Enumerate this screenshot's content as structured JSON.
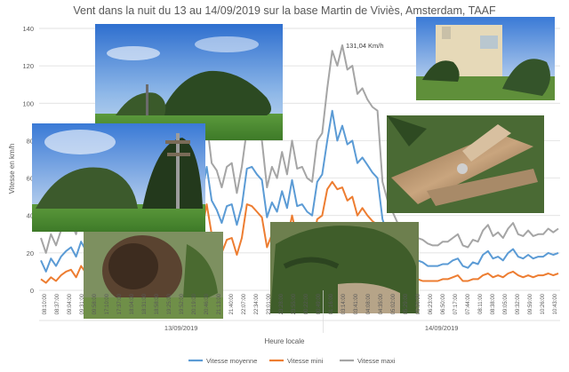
{
  "chart_data": {
    "type": "line",
    "title": "Vent dans la nuit du 13 au 14/09/2019 sur la base Martin de Viviès, Amsterdam, TAAF",
    "ylabel": "Vitesse en km/h",
    "xlabel": "Heure locale",
    "ylim": [
      0,
      140
    ],
    "yticks": [
      0,
      20,
      40,
      60,
      80,
      100,
      120,
      140
    ],
    "grid": true,
    "legend_position": "bottom",
    "date_groups": [
      "13/09/2019",
      "14/09/2019"
    ],
    "annotation": "131,04 Km/h",
    "x_ticks": [
      "08:10:00",
      "08:37:00",
      "09:04:00",
      "09:31:00",
      "09:58:00",
      "17:10:00",
      "17:37:00",
      "18:04:00",
      "18:31:00",
      "18:58:00",
      "19:25:00",
      "19:52:00",
      "20:19:00",
      "20:46:00",
      "21:13:00",
      "21:40:00",
      "22:07:00",
      "22:34:00",
      "23:01:00",
      "23:28:00",
      "23:55:00",
      "00:22:00",
      "00:49:00",
      "01:16:00",
      "03:14:00",
      "03:41:00",
      "04:08:00",
      "04:35:00",
      "05:02:00",
      "05:29:00",
      "05:56:00",
      "06:23:00",
      "06:50:00",
      "07:17:00",
      "07:44:00",
      "08:11:00",
      "08:38:00",
      "09:05:00",
      "09:32:00",
      "09:59:00",
      "10:26:00",
      "10:43:00"
    ],
    "series": [
      {
        "name": "Vitesse moyenne",
        "color": "#5B9BD5",
        "values": [
          16,
          10,
          17,
          13,
          18,
          21,
          23,
          18,
          26,
          21,
          27,
          24,
          20,
          34,
          33,
          38,
          39,
          27,
          26,
          15,
          37,
          15,
          45,
          44,
          58,
          55,
          52,
          43,
          57,
          62,
          54,
          52,
          50,
          66,
          48,
          43,
          36,
          45,
          46,
          35,
          45,
          65,
          66,
          62,
          59,
          39,
          47,
          42,
          53,
          44,
          59,
          45,
          46,
          42,
          40,
          58,
          62,
          80,
          96,
          80,
          88,
          78,
          80,
          68,
          71,
          67,
          63,
          60,
          38,
          30,
          26,
          21,
          21,
          19,
          18,
          16,
          15,
          13,
          13,
          13,
          14,
          14,
          16,
          17,
          13,
          12,
          15,
          14,
          19,
          21,
          17,
          18,
          16,
          20,
          22,
          18,
          17,
          19,
          17,
          18,
          18,
          20,
          19,
          20
        ]
      },
      {
        "name": "Vitesse mini",
        "color": "#ED7D31",
        "values": [
          6,
          4,
          7,
          5,
          8,
          10,
          11,
          7,
          13,
          9,
          13,
          11,
          9,
          16,
          16,
          18,
          19,
          13,
          12,
          5,
          14,
          3,
          43,
          30,
          40,
          38,
          35,
          26,
          38,
          42,
          33,
          33,
          31,
          46,
          30,
          27,
          20,
          27,
          28,
          19,
          28,
          46,
          45,
          42,
          39,
          23,
          30,
          26,
          36,
          27,
          40,
          28,
          29,
          25,
          24,
          38,
          40,
          54,
          58,
          54,
          55,
          48,
          50,
          40,
          44,
          40,
          37,
          35,
          20,
          13,
          10,
          8,
          8,
          7,
          7,
          6,
          5,
          5,
          5,
          5,
          6,
          6,
          7,
          8,
          5,
          5,
          6,
          6,
          8,
          9,
          7,
          8,
          7,
          9,
          10,
          8,
          7,
          8,
          7,
          8,
          8,
          9,
          8,
          9
        ]
      },
      {
        "name": "Vitesse maxi",
        "color": "#A5A5A5",
        "values": [
          28,
          20,
          30,
          24,
          32,
          34,
          36,
          30,
          40,
          34,
          42,
          38,
          32,
          49,
          47,
          55,
          57,
          42,
          40,
          24,
          52,
          28,
          82,
          64,
          78,
          80,
          74,
          62,
          84,
          92,
          78,
          76,
          72,
          90,
          68,
          64,
          55,
          66,
          68,
          52,
          66,
          86,
          90,
          85,
          80,
          55,
          66,
          60,
          74,
          62,
          80,
          65,
          66,
          60,
          58,
          80,
          84,
          108,
          128,
          120,
          131,
          118,
          120,
          105,
          108,
          102,
          98,
          96,
          58,
          48,
          42,
          36,
          36,
          33,
          31,
          28,
          27,
          25,
          24,
          24,
          26,
          26,
          28,
          30,
          24,
          23,
          27,
          26,
          32,
          35,
          29,
          31,
          28,
          33,
          36,
          30,
          29,
          32,
          29,
          30,
          30,
          33,
          31,
          33
        ]
      }
    ]
  }
}
